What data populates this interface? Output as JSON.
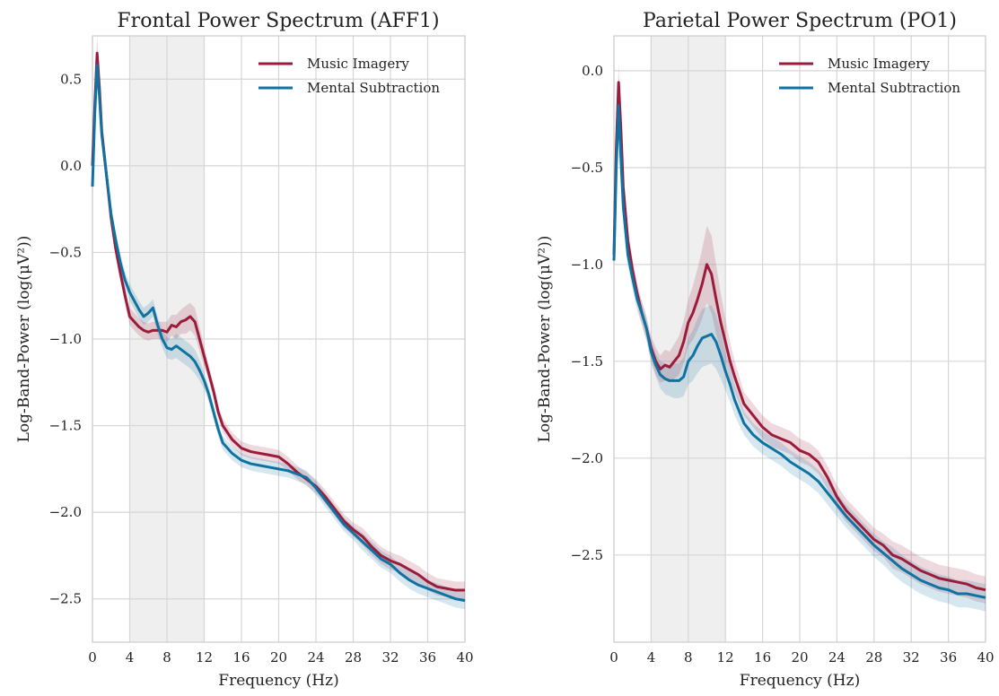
{
  "colors": {
    "music": "#9b1c3a",
    "subtraction": "#0f72a0",
    "band": "#e9e9e9",
    "grid": "#d6d6d6"
  },
  "chart_data": [
    {
      "type": "line",
      "title": "Frontal Power Spectrum (AFF1)",
      "xlabel": "Frequency (Hz)",
      "ylabel": "Log-Band-Power (log(μV²))",
      "xlim": [
        0,
        40
      ],
      "ylim": [
        -2.75,
        0.75
      ],
      "xticks": [
        0,
        4,
        8,
        12,
        16,
        20,
        24,
        28,
        32,
        36,
        40
      ],
      "xtick_labels": [
        "0",
        "4",
        "8",
        "12",
        "16",
        "20",
        "24",
        "28",
        "32",
        "36",
        "40"
      ],
      "yticks": [
        0.5,
        0.0,
        -0.5,
        -1.0,
        -1.5,
        -2.0,
        -2.5
      ],
      "ytick_labels": [
        "0.5",
        "0.0",
        "−0.5",
        "−1.0",
        "−1.5",
        "−2.0",
        "−2.5"
      ],
      "shaded_bands": [
        [
          4,
          8
        ],
        [
          8,
          12
        ]
      ],
      "legend": {
        "position": "top-right",
        "entries": [
          "Music Imagery",
          "Mental Subtraction"
        ]
      },
      "series": [
        {
          "name": "Music Imagery",
          "color_key": "music",
          "x": [
            0,
            0.25,
            0.5,
            0.75,
            1,
            1.5,
            2,
            2.5,
            3,
            3.5,
            4,
            4.5,
            5,
            5.5,
            6,
            6.5,
            7,
            7.5,
            8,
            8.5,
            9,
            9.5,
            10,
            10.5,
            11,
            11.5,
            12,
            12.5,
            13,
            13.5,
            14,
            15,
            16,
            17,
            18,
            19,
            20,
            21,
            22,
            23,
            24,
            25,
            26,
            27,
            28,
            29,
            30,
            31,
            32,
            33,
            34,
            35,
            36,
            37,
            38,
            39,
            40
          ],
          "y": [
            0.0,
            0.35,
            0.65,
            0.45,
            0.2,
            -0.05,
            -0.3,
            -0.48,
            -0.62,
            -0.75,
            -0.87,
            -0.9,
            -0.93,
            -0.95,
            -0.96,
            -0.95,
            -0.95,
            -0.95,
            -0.96,
            -0.92,
            -0.93,
            -0.9,
            -0.89,
            -0.87,
            -0.9,
            -1.0,
            -1.1,
            -1.2,
            -1.3,
            -1.42,
            -1.5,
            -1.58,
            -1.63,
            -1.65,
            -1.66,
            -1.67,
            -1.68,
            -1.72,
            -1.77,
            -1.81,
            -1.85,
            -1.91,
            -1.98,
            -2.05,
            -2.1,
            -2.14,
            -2.2,
            -2.25,
            -2.28,
            -2.3,
            -2.33,
            -2.36,
            -2.4,
            -2.43,
            -2.44,
            -2.45,
            -2.45
          ],
          "band_halfwidth": [
            0.05,
            0.1,
            0.1,
            0.09,
            0.07,
            0.06,
            0.05,
            0.05,
            0.05,
            0.05,
            0.05,
            0.05,
            0.05,
            0.05,
            0.05,
            0.05,
            0.05,
            0.05,
            0.06,
            0.06,
            0.07,
            0.07,
            0.08,
            0.08,
            0.08,
            0.07,
            0.06,
            0.05,
            0.04,
            0.04,
            0.04,
            0.04,
            0.04,
            0.04,
            0.04,
            0.04,
            0.04,
            0.04,
            0.04,
            0.04,
            0.04,
            0.04,
            0.04,
            0.04,
            0.04,
            0.05,
            0.05,
            0.05,
            0.05,
            0.05,
            0.05,
            0.05,
            0.05,
            0.05,
            0.05,
            0.05,
            0.05
          ]
        },
        {
          "name": "Mental Subtraction",
          "color_key": "subtraction",
          "x": [
            0,
            0.25,
            0.5,
            0.75,
            1,
            1.5,
            2,
            2.5,
            3,
            3.5,
            4,
            4.5,
            5,
            5.5,
            6,
            6.5,
            7,
            7.5,
            8,
            8.5,
            9,
            9.5,
            10,
            10.5,
            11,
            11.5,
            12,
            12.5,
            13,
            13.5,
            14,
            15,
            16,
            17,
            18,
            19,
            20,
            21,
            22,
            23,
            24,
            25,
            26,
            27,
            28,
            29,
            30,
            31,
            32,
            33,
            34,
            35,
            36,
            37,
            38,
            39,
            40
          ],
          "y": [
            -0.12,
            0.3,
            0.58,
            0.4,
            0.18,
            -0.05,
            -0.28,
            -0.43,
            -0.56,
            -0.66,
            -0.73,
            -0.78,
            -0.83,
            -0.87,
            -0.85,
            -0.82,
            -0.92,
            -1.0,
            -1.05,
            -1.06,
            -1.04,
            -1.06,
            -1.08,
            -1.1,
            -1.13,
            -1.18,
            -1.24,
            -1.32,
            -1.42,
            -1.52,
            -1.6,
            -1.66,
            -1.7,
            -1.72,
            -1.73,
            -1.74,
            -1.75,
            -1.76,
            -1.78,
            -1.8,
            -1.86,
            -1.93,
            -2.0,
            -2.07,
            -2.12,
            -2.17,
            -2.22,
            -2.27,
            -2.3,
            -2.35,
            -2.39,
            -2.42,
            -2.44,
            -2.46,
            -2.48,
            -2.5,
            -2.51
          ],
          "band_halfwidth": [
            0.05,
            0.09,
            0.09,
            0.08,
            0.07,
            0.06,
            0.05,
            0.05,
            0.05,
            0.05,
            0.05,
            0.05,
            0.05,
            0.05,
            0.05,
            0.05,
            0.05,
            0.05,
            0.06,
            0.06,
            0.07,
            0.07,
            0.07,
            0.07,
            0.07,
            0.06,
            0.05,
            0.05,
            0.04,
            0.04,
            0.04,
            0.04,
            0.04,
            0.04,
            0.04,
            0.04,
            0.04,
            0.04,
            0.04,
            0.04,
            0.04,
            0.04,
            0.04,
            0.04,
            0.04,
            0.05,
            0.05,
            0.05,
            0.05,
            0.05,
            0.05,
            0.05,
            0.05,
            0.05,
            0.05,
            0.05,
            0.05
          ]
        }
      ]
    },
    {
      "type": "line",
      "title": "Parietal Power Spectrum (PO1)",
      "xlabel": "Frequency (Hz)",
      "ylabel": "Log-Band-Power (log(μV²))",
      "xlim": [
        0,
        40
      ],
      "ylim": [
        -2.95,
        0.18
      ],
      "xticks": [
        0,
        4,
        8,
        12,
        16,
        20,
        24,
        28,
        32,
        36,
        40
      ],
      "xtick_labels": [
        "0",
        "4",
        "8",
        "12",
        "16",
        "20",
        "24",
        "28",
        "32",
        "36",
        "40"
      ],
      "yticks": [
        0.0,
        -0.5,
        -1.0,
        -1.5,
        -2.0,
        -2.5
      ],
      "ytick_labels": [
        "0.0",
        "−0.5",
        "−1.0",
        "−1.5",
        "−2.0",
        "−2.5"
      ],
      "shaded_bands": [
        [
          4,
          8
        ],
        [
          8,
          12
        ]
      ],
      "legend": {
        "position": "top-right",
        "entries": [
          "Music Imagery",
          "Mental Subtraction"
        ]
      },
      "series": [
        {
          "name": "Music Imagery",
          "color_key": "music",
          "x": [
            0,
            0.25,
            0.5,
            0.75,
            1,
            1.5,
            2,
            2.5,
            3,
            3.5,
            4,
            4.5,
            5,
            5.5,
            6,
            6.5,
            7,
            7.5,
            8,
            8.5,
            9,
            9.5,
            10,
            10.5,
            11,
            11.5,
            12,
            12.5,
            13,
            13.5,
            14,
            15,
            16,
            17,
            18,
            19,
            20,
            21,
            22,
            23,
            24,
            25,
            26,
            27,
            28,
            29,
            30,
            31,
            32,
            33,
            34,
            35,
            36,
            37,
            38,
            39,
            40
          ],
          "y": [
            -0.95,
            -0.4,
            -0.06,
            -0.3,
            -0.6,
            -0.88,
            -1.03,
            -1.15,
            -1.25,
            -1.33,
            -1.43,
            -1.5,
            -1.54,
            -1.52,
            -1.53,
            -1.5,
            -1.47,
            -1.4,
            -1.3,
            -1.25,
            -1.18,
            -1.1,
            -1.0,
            -1.05,
            -1.18,
            -1.3,
            -1.4,
            -1.5,
            -1.58,
            -1.65,
            -1.72,
            -1.78,
            -1.84,
            -1.88,
            -1.9,
            -1.92,
            -1.96,
            -1.98,
            -2.02,
            -2.1,
            -2.2,
            -2.27,
            -2.32,
            -2.37,
            -2.42,
            -2.45,
            -2.5,
            -2.52,
            -2.55,
            -2.58,
            -2.6,
            -2.62,
            -2.63,
            -2.64,
            -2.65,
            -2.67,
            -2.68
          ],
          "band_halfwidth": [
            0.06,
            0.08,
            0.09,
            0.09,
            0.08,
            0.07,
            0.06,
            0.06,
            0.06,
            0.06,
            0.06,
            0.07,
            0.07,
            0.08,
            0.08,
            0.09,
            0.1,
            0.11,
            0.12,
            0.14,
            0.16,
            0.18,
            0.2,
            0.2,
            0.18,
            0.15,
            0.12,
            0.1,
            0.08,
            0.07,
            0.06,
            0.06,
            0.06,
            0.06,
            0.06,
            0.06,
            0.06,
            0.06,
            0.06,
            0.06,
            0.06,
            0.06,
            0.06,
            0.06,
            0.06,
            0.06,
            0.07,
            0.07,
            0.07,
            0.07,
            0.07,
            0.07,
            0.07,
            0.07,
            0.07,
            0.07,
            0.07
          ]
        },
        {
          "name": "Mental Subtraction",
          "color_key": "subtraction",
          "x": [
            0,
            0.25,
            0.5,
            0.75,
            1,
            1.5,
            2,
            2.5,
            3,
            3.5,
            4,
            4.5,
            5,
            5.5,
            6,
            6.5,
            7,
            7.5,
            8,
            8.5,
            9,
            9.5,
            10,
            10.5,
            11,
            11.5,
            12,
            12.5,
            13,
            13.5,
            14,
            15,
            16,
            17,
            18,
            19,
            20,
            21,
            22,
            23,
            24,
            25,
            26,
            27,
            28,
            29,
            30,
            31,
            32,
            33,
            34,
            35,
            36,
            37,
            38,
            39,
            40
          ],
          "y": [
            -0.98,
            -0.5,
            -0.18,
            -0.45,
            -0.7,
            -0.95,
            -1.07,
            -1.18,
            -1.25,
            -1.33,
            -1.45,
            -1.52,
            -1.57,
            -1.59,
            -1.6,
            -1.6,
            -1.6,
            -1.58,
            -1.5,
            -1.47,
            -1.42,
            -1.38,
            -1.37,
            -1.36,
            -1.4,
            -1.47,
            -1.55,
            -1.62,
            -1.7,
            -1.76,
            -1.82,
            -1.88,
            -1.92,
            -1.95,
            -1.98,
            -2.02,
            -2.05,
            -2.08,
            -2.12,
            -2.18,
            -2.24,
            -2.3,
            -2.35,
            -2.4,
            -2.45,
            -2.49,
            -2.53,
            -2.57,
            -2.6,
            -2.63,
            -2.65,
            -2.67,
            -2.68,
            -2.7,
            -2.7,
            -2.71,
            -2.72
          ],
          "band_halfwidth": [
            0.06,
            0.08,
            0.09,
            0.08,
            0.07,
            0.06,
            0.06,
            0.06,
            0.06,
            0.06,
            0.06,
            0.06,
            0.07,
            0.08,
            0.08,
            0.09,
            0.09,
            0.1,
            0.12,
            0.13,
            0.14,
            0.15,
            0.15,
            0.15,
            0.14,
            0.12,
            0.1,
            0.09,
            0.08,
            0.07,
            0.06,
            0.06,
            0.06,
            0.06,
            0.06,
            0.06,
            0.06,
            0.06,
            0.06,
            0.06,
            0.06,
            0.06,
            0.06,
            0.06,
            0.06,
            0.06,
            0.07,
            0.07,
            0.07,
            0.07,
            0.07,
            0.07,
            0.07,
            0.07,
            0.07,
            0.07,
            0.07
          ]
        }
      ]
    }
  ]
}
